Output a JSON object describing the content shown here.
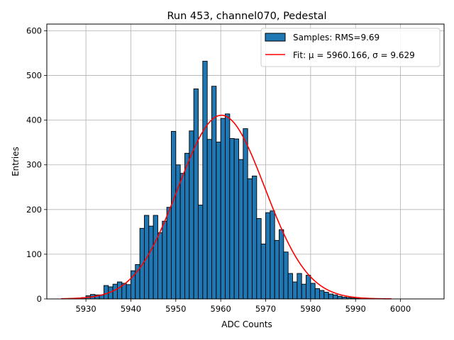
{
  "chart_data": {
    "type": "bar",
    "title": "Run 453, channel070, Pedestal",
    "xlabel": "ADC Counts",
    "ylabel": "Entries",
    "xlim": [
      5921.3,
      6009.7
    ],
    "ylim": [
      0,
      615
    ],
    "xticks": [
      5930,
      5940,
      5950,
      5960,
      5970,
      5980,
      5990,
      6000
    ],
    "yticks": [
      0,
      100,
      200,
      300,
      400,
      500,
      600
    ],
    "grid": true,
    "legend_position": "top-right",
    "bin_width": 1,
    "bin_start": 5925,
    "values": [
      0,
      0,
      0,
      1,
      3,
      7,
      10,
      9,
      9,
      30,
      27,
      33,
      38,
      35,
      32,
      63,
      77,
      158,
      187,
      163,
      187,
      148,
      174,
      205,
      375,
      300,
      281,
      326,
      376,
      470,
      210,
      532,
      357,
      476,
      351,
      404,
      414,
      359,
      358,
      312,
      381,
      269,
      275,
      180,
      123,
      193,
      197,
      131,
      155,
      105,
      57,
      38,
      57,
      33,
      53,
      35,
      23,
      19,
      15,
      11,
      9,
      6,
      4,
      3,
      2,
      1,
      0,
      0,
      0,
      0,
      0,
      0,
      0,
      0,
      0,
      0,
      0,
      0,
      0,
      0,
      0
    ],
    "series": [
      {
        "name": "Samples: RMS=9.69",
        "type": "bar",
        "color": "#1f77b4"
      },
      {
        "name": "Fit: μ = 5960.166, σ = 9.629",
        "type": "line",
        "color": "#e41a1c",
        "mu": 5960.166,
        "sigma": 9.629,
        "amplitude": 411,
        "x_range": [
          5924.5,
          5998
        ]
      }
    ]
  }
}
